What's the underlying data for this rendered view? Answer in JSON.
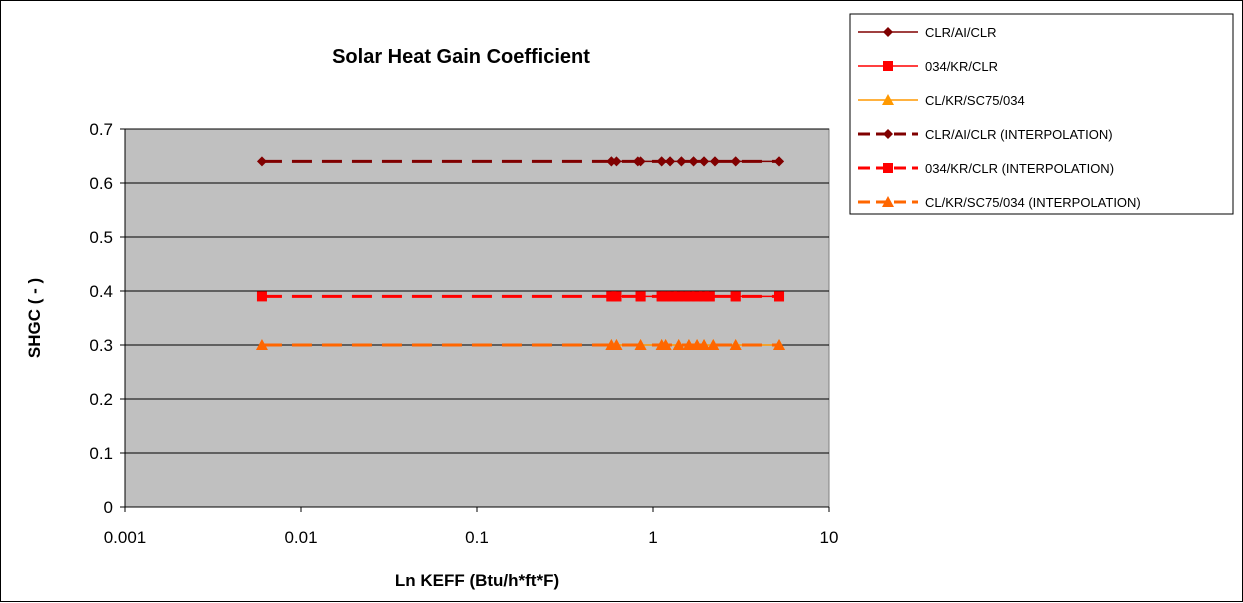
{
  "chart_data": {
    "type": "line",
    "title": "Solar Heat Gain Coefficient",
    "xlabel": "Ln KEFF (Btu/h*ft*F)",
    "ylabel": "SHGC ( - )",
    "xscale": "log",
    "xlim": [
      0.001,
      10
    ],
    "ylim": [
      0,
      0.7
    ],
    "x_ticks": [
      "0.001",
      "0.01",
      "0.1",
      "1",
      "10"
    ],
    "y_ticks": [
      "0",
      "0.1",
      "0.2",
      "0.3",
      "0.4",
      "0.5",
      "0.6",
      "0.7"
    ],
    "grid": "horizontal major gridlines",
    "plot_background": "#c0c0c0",
    "legend_position": "top-right",
    "series": [
      {
        "name": "CLR/AI/CLR",
        "marker": "diamond",
        "color": "#800000",
        "line_style": "solid",
        "x": [
          0.58,
          0.82,
          1.12,
          1.25,
          1.45,
          1.7,
          1.95,
          2.25,
          2.95,
          5.2
        ],
        "y": [
          0.64,
          0.64,
          0.64,
          0.64,
          0.64,
          0.64,
          0.64,
          0.64,
          0.64,
          0.64
        ]
      },
      {
        "name": "034/KR/CLR",
        "marker": "square",
        "color": "#ff0000",
        "line_style": "solid",
        "x": [
          0.58,
          0.62,
          0.85,
          1.12,
          1.18,
          1.28,
          1.4,
          1.52,
          1.62,
          1.78,
          1.95,
          2.1,
          2.95,
          5.2
        ],
        "y": [
          0.39,
          0.39,
          0.39,
          0.39,
          0.39,
          0.39,
          0.39,
          0.39,
          0.39,
          0.39,
          0.39,
          0.39,
          0.39,
          0.39
        ]
      },
      {
        "name": "CL/KR/SC75/034",
        "marker": "triangle",
        "color": "#ff9900",
        "line_style": "solid",
        "x": [
          0.58,
          0.62,
          0.85,
          1.12,
          1.18,
          1.4,
          1.6,
          1.78,
          1.95,
          2.2,
          2.95,
          5.2
        ],
        "y": [
          0.3,
          0.3,
          0.3,
          0.3,
          0.3,
          0.3,
          0.3,
          0.3,
          0.3,
          0.3,
          0.3,
          0.3
        ]
      },
      {
        "name": "CLR/AI/CLR (INTERPOLATION)",
        "marker": "diamond",
        "color": "#800000",
        "line_style": "dashed",
        "x": [
          0.006,
          0.58,
          0.62,
          0.85,
          1.12,
          1.25,
          1.45,
          1.7,
          1.95,
          2.25,
          2.95,
          5.2
        ],
        "y": [
          0.64,
          0.64,
          0.64,
          0.64,
          0.64,
          0.64,
          0.64,
          0.64,
          0.64,
          0.64,
          0.64,
          0.64
        ]
      },
      {
        "name": "034/KR/CLR (INTERPOLATION)",
        "marker": "square",
        "color": "#ff0000",
        "line_style": "dashed",
        "x": [
          0.006,
          0.58,
          0.62,
          0.85,
          1.12,
          1.28,
          1.4,
          1.6,
          1.78,
          1.95,
          2.1,
          2.95,
          5.2
        ],
        "y": [
          0.39,
          0.39,
          0.39,
          0.39,
          0.39,
          0.39,
          0.39,
          0.39,
          0.39,
          0.39,
          0.39,
          0.39,
          0.39
        ]
      },
      {
        "name": "CL/KR/SC75/034 (INTERPOLATION)",
        "marker": "triangle",
        "color": "#ff6600",
        "line_style": "dashed",
        "x": [
          0.006,
          0.58,
          0.62,
          0.85,
          1.12,
          1.18,
          1.4,
          1.6,
          1.78,
          1.95,
          2.2,
          2.95,
          5.2
        ],
        "y": [
          0.3,
          0.3,
          0.3,
          0.3,
          0.3,
          0.3,
          0.3,
          0.3,
          0.3,
          0.3,
          0.3,
          0.3,
          0.3
        ]
      }
    ]
  }
}
